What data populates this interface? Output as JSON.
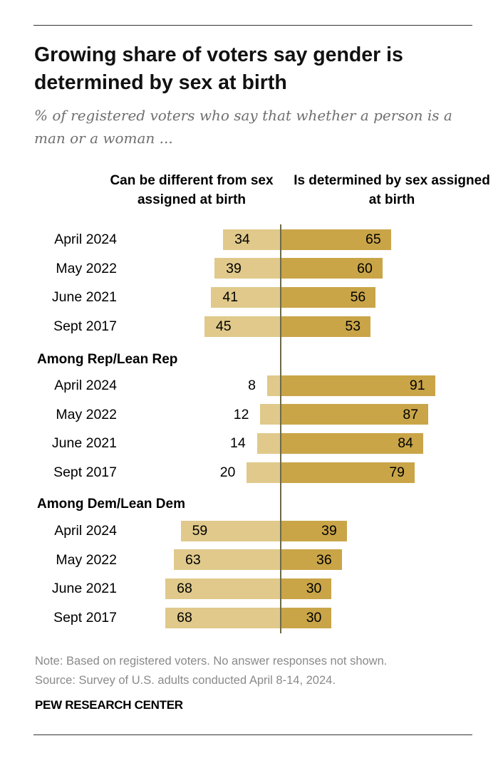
{
  "chart_data": {
    "type": "bar",
    "orientation": "diverging-horizontal",
    "title": "Growing share of voters say gender is determined by sex at birth",
    "subtitle": "% of registered voters who say that whether a person is a man or a woman ...",
    "legend": [
      "Can be different from sex assigned at birth",
      "Is determined by sex assigned at birth"
    ],
    "colors": {
      "different": "#e0c98b",
      "determined": "#c9a548",
      "axis": "#6b6b4a"
    },
    "groups": [
      {
        "label": "",
        "rows": [
          {
            "category": "April 2024",
            "different": 34,
            "determined": 65
          },
          {
            "category": "May 2022",
            "different": 39,
            "determined": 60
          },
          {
            "category": "June 2021",
            "different": 41,
            "determined": 56
          },
          {
            "category": "Sept 2017",
            "different": 45,
            "determined": 53
          }
        ]
      },
      {
        "label": "Among Rep/Lean Rep",
        "rows": [
          {
            "category": "April 2024",
            "different": 8,
            "determined": 91
          },
          {
            "category": "May 2022",
            "different": 12,
            "determined": 87
          },
          {
            "category": "June 2021",
            "different": 14,
            "determined": 84
          },
          {
            "category": "Sept 2017",
            "different": 20,
            "determined": 79
          }
        ]
      },
      {
        "label": "Among Dem/Lean Dem",
        "rows": [
          {
            "category": "April 2024",
            "different": 59,
            "determined": 39
          },
          {
            "category": "May 2022",
            "different": 63,
            "determined": 36
          },
          {
            "category": "June 2021",
            "different": 68,
            "determined": 30
          },
          {
            "category": "Sept 2017",
            "different": 68,
            "determined": 30
          }
        ]
      }
    ]
  },
  "note": "Note: Based on registered voters. No answer responses not shown.",
  "source": "Source: Survey of U.S. adults conducted April 8-14, 2024.",
  "brand": "PEW RESEARCH CENTER"
}
